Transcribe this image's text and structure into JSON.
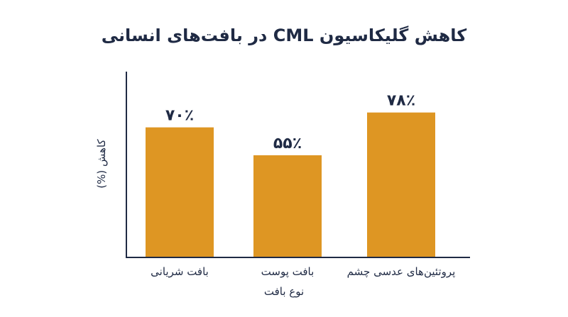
{
  "chart_data": {
    "type": "bar",
    "title": "کاهش گلیکاسیون CML در بافت‌های انسانی",
    "xlabel": "نوع بافت",
    "ylabel": "کاهش (%)",
    "categories": [
      "بافت شریانی",
      "بافت پوست",
      "پروتئین‌های عدسی چشم"
    ],
    "values": [
      70,
      55,
      78
    ],
    "data_labels": [
      "۷۰٪",
      "۵۵٪",
      "۷۸٪"
    ],
    "ylim": [
      0,
      100
    ],
    "bar_color": "#DE9623",
    "axis_color": "#1F2A44",
    "grid": false
  }
}
